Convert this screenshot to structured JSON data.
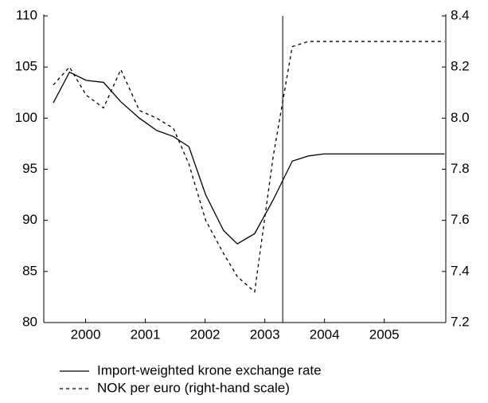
{
  "chart_data": {
    "type": "line",
    "x": [
      1999.96,
      2000.23,
      2000.51,
      2000.8,
      2001.09,
      2001.4,
      2001.69,
      2001.97,
      2002.23,
      2002.51,
      2002.81,
      2003.04,
      2003.33,
      2003.64,
      2003.96,
      2004.23,
      2004.49,
      2006.51
    ],
    "series": [
      {
        "name": "Import-weighted krone exchange rate",
        "color": "#000000",
        "dash": "none",
        "values": [
          101.5,
          104.5,
          103.7,
          103.5,
          101.6,
          100.0,
          98.8,
          98.2,
          97.2,
          92.5,
          89.0,
          87.7,
          88.7,
          92.0,
          95.8,
          96.3,
          96.5,
          96.5
        ]
      },
      {
        "name": "NOK per euro (right-hand scale)",
        "color": "#000000",
        "dash": "4 4",
        "axis": "y2",
        "values": [
          8.13,
          8.2,
          8.09,
          8.04,
          8.19,
          8.03,
          8.0,
          7.96,
          7.82,
          7.6,
          7.47,
          7.38,
          7.32,
          7.85,
          8.28,
          8.3,
          8.3,
          8.3
        ]
      }
    ],
    "xlim": [
      1999.8,
      2006.53
    ],
    "xticks": [
      {
        "value": 2000.5,
        "label": "2000"
      },
      {
        "value": 2001.5,
        "label": "2001"
      },
      {
        "value": 2002.5,
        "label": "2002"
      },
      {
        "value": 2003.5,
        "label": "2003"
      },
      {
        "value": 2004.5,
        "label": "2004"
      },
      {
        "value": 2005.5,
        "label": "2005"
      }
    ],
    "ylim": [
      80,
      110
    ],
    "yticks": [
      80,
      85,
      90,
      95,
      100,
      105,
      110
    ],
    "y2lim": [
      7.2,
      8.4
    ],
    "y2ticks": [
      7.2,
      7.4,
      7.6,
      7.8,
      {
        "value": 8,
        "label": "8.0"
      },
      8.2,
      8.4
    ],
    "vline": 2003.8,
    "legend": "bottom-left"
  }
}
